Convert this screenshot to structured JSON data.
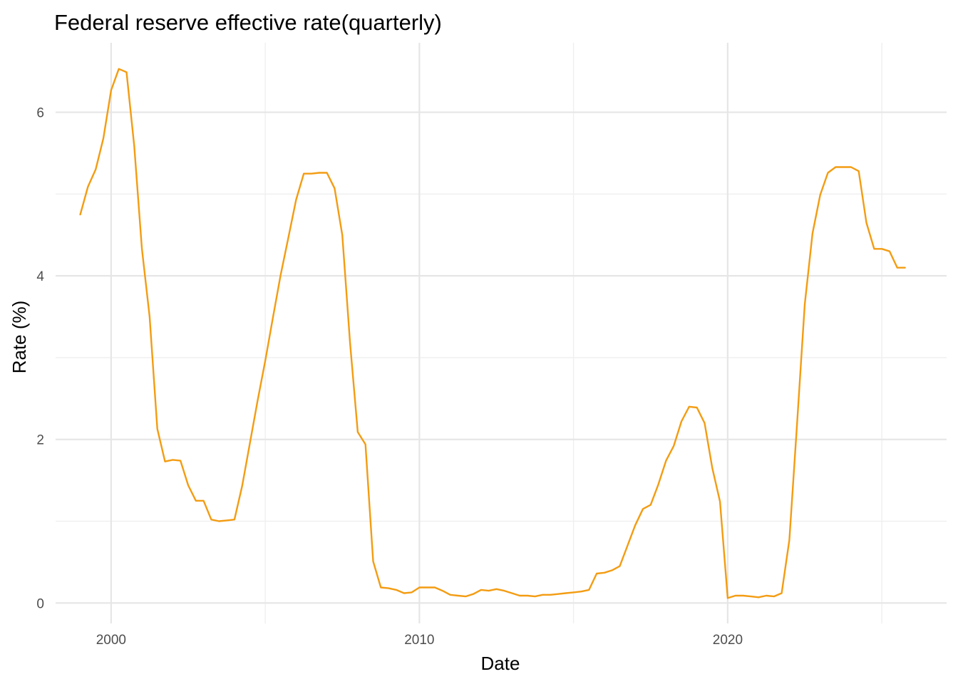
{
  "chart_data": {
    "type": "line",
    "title": "Federal reserve effective rate(quarterly)",
    "xlabel": "Date",
    "ylabel": "Rate (%)",
    "xlim": [
      1998.2,
      2027.1
    ],
    "ylim": [
      -0.25,
      6.85
    ],
    "x_major_ticks": [
      2000,
      2010,
      2020
    ],
    "x_tick_labels": [
      "2000",
      "2010",
      "2020"
    ],
    "x_minor_ticks": [
      2005,
      2015,
      2025
    ],
    "y_major_ticks": [
      0,
      2,
      4,
      6
    ],
    "y_tick_labels": [
      "0",
      "2",
      "4",
      "6"
    ],
    "y_minor_ticks": [
      1,
      3,
      5
    ],
    "grid": true,
    "legend": "none",
    "series": [
      {
        "color": "#f39c12",
        "x": [
          1999.0,
          1999.25,
          1999.5,
          1999.75,
          2000.0,
          2000.25,
          2000.5,
          2000.75,
          2001.0,
          2001.25,
          2001.5,
          2001.75,
          2002.0,
          2002.25,
          2002.5,
          2002.75,
          2003.0,
          2003.25,
          2003.5,
          2003.75,
          2004.0,
          2004.25,
          2004.5,
          2004.75,
          2005.0,
          2005.25,
          2005.5,
          2005.75,
          2006.0,
          2006.25,
          2006.5,
          2006.75,
          2007.0,
          2007.25,
          2007.5,
          2007.75,
          2008.0,
          2008.25,
          2008.5,
          2008.75,
          2009.0,
          2009.25,
          2009.5,
          2009.75,
          2010.0,
          2010.25,
          2010.5,
          2010.75,
          2011.0,
          2011.25,
          2011.5,
          2011.75,
          2012.0,
          2012.25,
          2012.5,
          2012.75,
          2013.0,
          2013.25,
          2013.5,
          2013.75,
          2014.0,
          2014.25,
          2014.5,
          2014.75,
          2015.0,
          2015.25,
          2015.5,
          2015.75,
          2016.0,
          2016.25,
          2016.5,
          2016.75,
          2017.0,
          2017.25,
          2017.5,
          2017.75,
          2018.0,
          2018.25,
          2018.5,
          2018.75,
          2019.0,
          2019.25,
          2019.5,
          2019.75,
          2020.0,
          2020.25,
          2020.5,
          2020.75,
          2021.0,
          2021.25,
          2021.5,
          2021.75,
          2022.0,
          2022.25,
          2022.5,
          2022.75,
          2023.0,
          2023.25,
          2023.5,
          2023.75,
          2024.0,
          2024.25,
          2024.5,
          2024.75,
          2025.0,
          2025.25,
          2025.5,
          2025.75
        ],
        "values": [
          4.75,
          5.09,
          5.3,
          5.68,
          6.27,
          6.53,
          6.49,
          5.59,
          4.33,
          3.5,
          2.13,
          1.73,
          1.75,
          1.74,
          1.44,
          1.25,
          1.25,
          1.02,
          1.0,
          1.01,
          1.02,
          1.43,
          1.95,
          2.47,
          2.96,
          3.49,
          4.01,
          4.47,
          4.93,
          5.25,
          5.25,
          5.26,
          5.26,
          5.07,
          4.5,
          3.18,
          2.09,
          1.94,
          0.51,
          0.19,
          0.18,
          0.16,
          0.12,
          0.13,
          0.19,
          0.19,
          0.19,
          0.15,
          0.1,
          0.09,
          0.08,
          0.11,
          0.16,
          0.15,
          0.17,
          0.15,
          0.12,
          0.09,
          0.09,
          0.08,
          0.1,
          0.1,
          0.11,
          0.12,
          0.13,
          0.14,
          0.16,
          0.36,
          0.37,
          0.4,
          0.45,
          0.7,
          0.95,
          1.15,
          1.2,
          1.45,
          1.74,
          1.92,
          2.22,
          2.4,
          2.39,
          2.2,
          1.65,
          1.24,
          0.06,
          0.09,
          0.09,
          0.08,
          0.07,
          0.09,
          0.08,
          0.12,
          0.77,
          2.19,
          3.65,
          4.52,
          4.99,
          5.26,
          5.33,
          5.33,
          5.33,
          5.28,
          4.65,
          4.33,
          4.33,
          4.3,
          4.1,
          4.1
        ]
      }
    ]
  }
}
